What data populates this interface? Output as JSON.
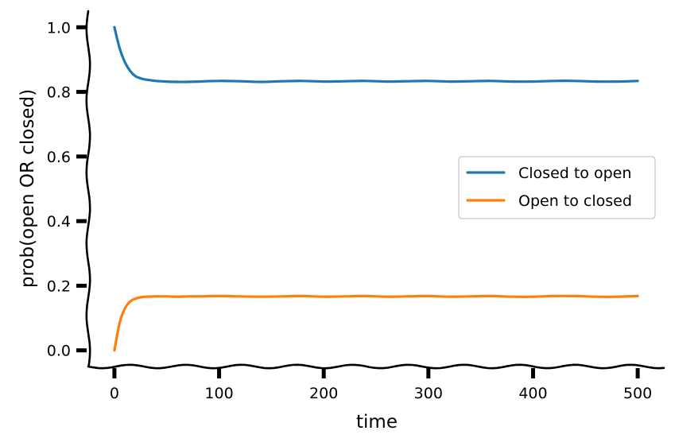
{
  "chart_data": {
    "type": "line",
    "xlabel": "time",
    "ylabel": "prob(open OR closed)",
    "xlim": [
      -25,
      525
    ],
    "ylim": [
      -0.05,
      1.05
    ],
    "xticks": [
      0,
      100,
      200,
      300,
      400,
      500
    ],
    "xtick_labels": [
      "0",
      "100",
      "200",
      "300",
      "400",
      "500"
    ],
    "yticks": [
      0.0,
      0.2,
      0.4,
      0.6,
      0.8,
      1.0
    ],
    "ytick_labels": [
      "0.0",
      "0.2",
      "0.4",
      "0.6",
      "0.8",
      "1.0"
    ],
    "grid": false,
    "legend_position": "center-right",
    "series": [
      {
        "name": "Closed to open",
        "color": "#1f77b4",
        "x": [
          0,
          5,
          10,
          15,
          20,
          25,
          30,
          40,
          50,
          60,
          70,
          80,
          100,
          120,
          140,
          160,
          180,
          200,
          220,
          240,
          260,
          280,
          300,
          320,
          340,
          360,
          380,
          400,
          420,
          440,
          460,
          480,
          500
        ],
        "y": [
          1.0,
          0.935,
          0.892,
          0.865,
          0.849,
          0.842,
          0.838,
          0.834,
          0.832,
          0.831,
          0.831,
          0.832,
          0.834,
          0.833,
          0.831,
          0.833,
          0.834,
          0.832,
          0.833,
          0.834,
          0.832,
          0.833,
          0.834,
          0.832,
          0.833,
          0.834,
          0.832,
          0.832,
          0.834,
          0.834,
          0.832,
          0.832,
          0.834
        ]
      },
      {
        "name": "Open to closed",
        "color": "#ff7f0e",
        "x": [
          0,
          5,
          10,
          15,
          20,
          25,
          30,
          40,
          50,
          60,
          70,
          80,
          100,
          120,
          140,
          160,
          180,
          200,
          220,
          240,
          260,
          280,
          300,
          320,
          340,
          360,
          380,
          400,
          420,
          440,
          460,
          480,
          500
        ],
        "y": [
          0.0,
          0.085,
          0.13,
          0.151,
          0.16,
          0.164,
          0.166,
          0.167,
          0.167,
          0.166,
          0.167,
          0.167,
          0.168,
          0.167,
          0.166,
          0.167,
          0.168,
          0.166,
          0.167,
          0.168,
          0.166,
          0.167,
          0.168,
          0.166,
          0.167,
          0.168,
          0.166,
          0.166,
          0.168,
          0.168,
          0.166,
          0.166,
          0.168
        ]
      }
    ]
  }
}
